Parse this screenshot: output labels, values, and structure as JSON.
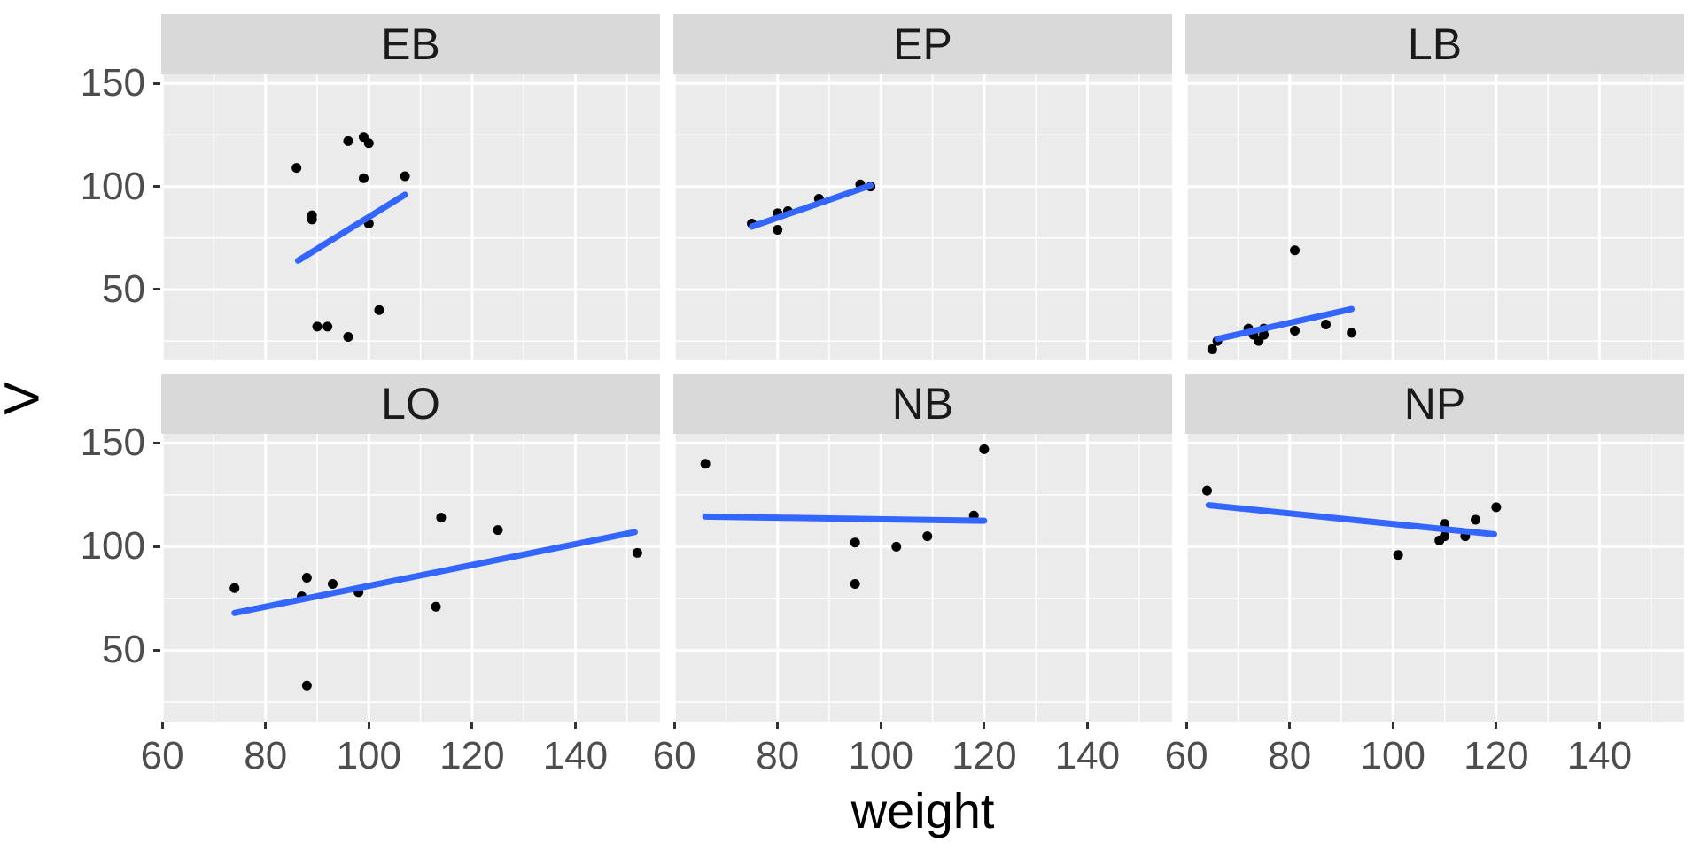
{
  "chart_data": {
    "type": "scatter",
    "title": "",
    "xlabel": "weight",
    "ylabel": "V",
    "legend": "none",
    "grid": "on",
    "x_domain": [
      59.8,
      156.4
    ],
    "y_domain": [
      15.6,
      154.4
    ],
    "x_major_ticks": [
      60,
      80,
      100,
      120,
      140
    ],
    "x_tick_labels": [
      "60",
      "80",
      "100",
      "120",
      "140"
    ],
    "x_minor_ticks": [
      70,
      90,
      110,
      130,
      150
    ],
    "y_major_ticks": [
      150,
      100,
      50
    ],
    "y_tick_labels": [
      "150",
      "100",
      "50"
    ],
    "y_minor_ticks": [
      125,
      75,
      25
    ],
    "facet_layout": {
      "rows": 2,
      "cols": 3
    },
    "facets": [
      {
        "label": "EB",
        "points": [
          [
            96,
            122
          ],
          [
            99,
            124
          ],
          [
            100,
            121
          ],
          [
            86,
            109
          ],
          [
            99,
            104
          ],
          [
            107,
            105
          ],
          [
            89,
            86
          ],
          [
            89,
            84
          ],
          [
            100,
            82
          ],
          [
            102,
            40
          ],
          [
            90,
            32
          ],
          [
            92,
            32
          ],
          [
            96,
            27
          ]
        ],
        "trend": [
          [
            86.3,
            64
          ],
          [
            107,
            96
          ]
        ]
      },
      {
        "label": "EP",
        "points": [
          [
            75,
            82
          ],
          [
            80,
            87
          ],
          [
            82,
            88
          ],
          [
            80,
            79
          ],
          [
            88,
            94
          ],
          [
            96,
            101
          ],
          [
            98,
            100
          ]
        ],
        "trend": [
          [
            75,
            80.5
          ],
          [
            98,
            100.5
          ]
        ]
      },
      {
        "label": "LB",
        "points": [
          [
            81,
            69
          ],
          [
            65,
            21
          ],
          [
            66,
            25
          ],
          [
            72,
            31
          ],
          [
            73,
            28
          ],
          [
            74,
            25
          ],
          [
            75,
            31
          ],
          [
            75,
            28
          ],
          [
            81,
            30
          ],
          [
            87,
            33
          ],
          [
            92,
            29
          ]
        ],
        "trend": [
          [
            66,
            26
          ],
          [
            92,
            40.5
          ]
        ]
      },
      {
        "label": "LO",
        "points": [
          [
            74,
            80
          ],
          [
            88,
            85
          ],
          [
            87,
            76
          ],
          [
            93,
            82
          ],
          [
            98,
            78
          ],
          [
            114,
            114
          ],
          [
            125,
            108
          ],
          [
            113,
            71
          ],
          [
            152,
            97
          ],
          [
            88,
            33
          ]
        ],
        "trend": [
          [
            74,
            68
          ],
          [
            151.5,
            107
          ]
        ]
      },
      {
        "label": "NB",
        "points": [
          [
            66,
            140
          ],
          [
            120,
            147
          ],
          [
            118,
            115
          ],
          [
            95,
            102
          ],
          [
            103,
            100
          ],
          [
            109,
            105
          ],
          [
            95,
            82
          ]
        ],
        "trend": [
          [
            66,
            114.5
          ],
          [
            120,
            112.5
          ]
        ]
      },
      {
        "label": "NP",
        "points": [
          [
            64,
            127
          ],
          [
            110,
            111
          ],
          [
            109,
            103
          ],
          [
            110,
            105
          ],
          [
            114,
            105
          ],
          [
            116,
            113
          ],
          [
            120,
            119
          ],
          [
            101,
            96
          ]
        ],
        "trend": [
          [
            64.3,
            120
          ],
          [
            119.6,
            106
          ]
        ]
      }
    ]
  },
  "colors": {
    "trend_line": "#3366FF",
    "point": "#000000",
    "panel_bg": "#EBEBEB",
    "strip_bg": "#D9D9D9",
    "gridline": "#FFFFFF",
    "tick_text": "#4D4D4D",
    "strip_text": "#1A1A1A",
    "axis_title_text": "#000000",
    "tick_mark": "#333333",
    "page_bg": "#FFFFFF"
  }
}
